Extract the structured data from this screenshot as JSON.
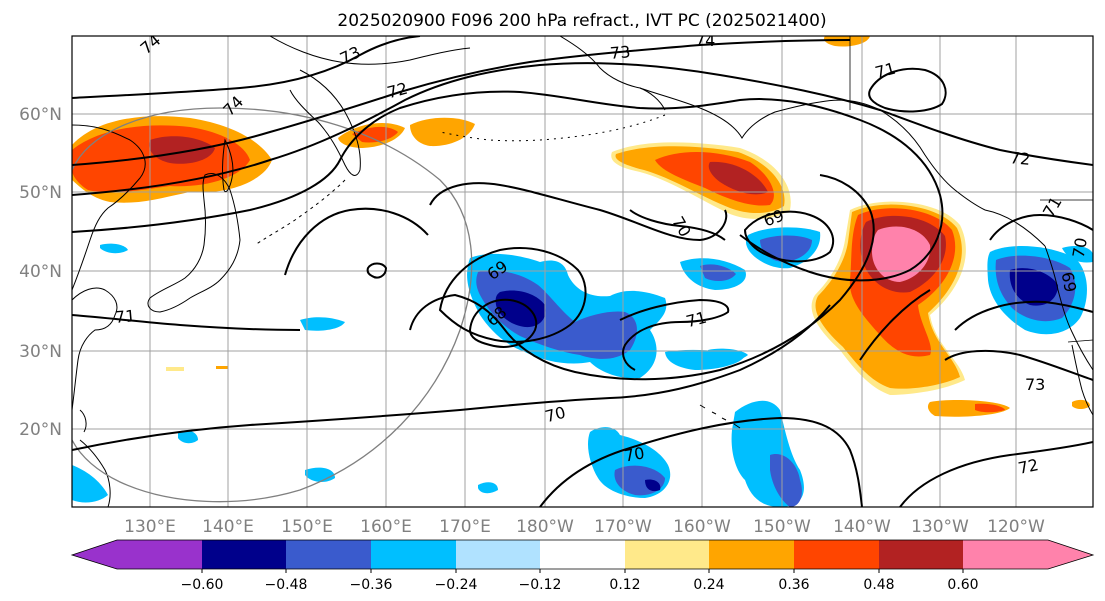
{
  "title": "2025020900 F096 200 hPa refract., IVT PC (2025021400)",
  "map": {
    "lat_labels": [
      "60°N",
      "50°N",
      "40°N",
      "30°N",
      "20°N"
    ],
    "lon_labels": [
      "130°E",
      "140°E",
      "150°E",
      "160°E",
      "170°E",
      "180°W",
      "170°W",
      "160°W",
      "150°W",
      "140°W",
      "130°W",
      "120°W"
    ],
    "contour_labels": [
      "73",
      "74",
      "73",
      "71",
      "72",
      "74",
      "72",
      "71",
      "70",
      "69",
      "69",
      "68",
      "71",
      "70",
      "70",
      "71",
      "73",
      "72",
      "69",
      "70",
      "74"
    ]
  },
  "colorbar": {
    "ticks": [
      "−0.60",
      "−0.48",
      "−0.36",
      "−0.24",
      "−0.12",
      "0.12",
      "0.24",
      "0.36",
      "0.48",
      "0.60"
    ],
    "colors": [
      "#9932cc",
      "#00008b",
      "#3a5bcd",
      "#00bfff",
      "#b0e2ff",
      "#ffffff",
      "#ffe98a",
      "#ffa500",
      "#ff4500",
      "#b22222",
      "#ff82ab",
      "#ff82ab"
    ]
  },
  "colors": {
    "orange": "#ffa500",
    "red": "#ff4500",
    "darkred": "#b22222",
    "pink": "#ff82ab",
    "lightyellow": "#ffe98a",
    "skyblue": "#00bfff",
    "royalblue": "#3a5bcd",
    "navy": "#00008b",
    "grid": "#a0a0a0",
    "label": "#808080"
  }
}
